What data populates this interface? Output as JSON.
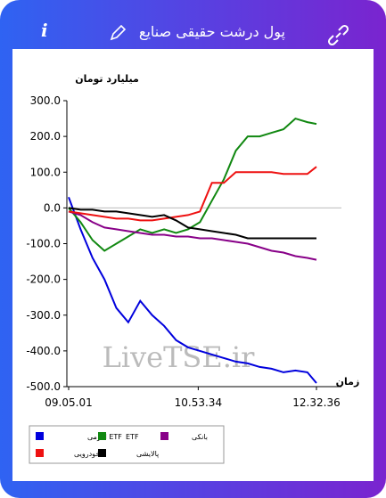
{
  "header": {
    "title": "پول درشت حقیقی صنایع",
    "info": "i"
  },
  "chart_data": {
    "type": "line",
    "y_label": "میلیارد تومان",
    "x_label": "زمان",
    "watermark": "LiveTSE.ir",
    "x": [
      "09.05.01",
      "09.15.00",
      "09.25.00",
      "09.35.00",
      "09.45.00",
      "09.55.00",
      "10.05.00",
      "10.15.00",
      "10.25.00",
      "10.35.00",
      "10.45.00",
      "10.55.00",
      "11.05.00",
      "11.15.00",
      "11.25.00",
      "11.35.00",
      "11.45.00",
      "11.55.00",
      "12.05.00",
      "12.15.00",
      "12.25.00",
      "12.32.36"
    ],
    "xlim": [
      "09.05.01",
      "12.32.36"
    ],
    "xticks": [
      "09.05.01",
      "10.53.34",
      "12.32.36"
    ],
    "ylim": [
      -500,
      300
    ],
    "yticks": [
      {
        "value": -500,
        "label": "-500.0"
      },
      {
        "value": -400,
        "label": "-400.0"
      },
      {
        "value": -300,
        "label": "-300.0"
      },
      {
        "value": -200,
        "label": "-200.0"
      },
      {
        "value": -100,
        "label": "-100.0"
      },
      {
        "value": 0,
        "label": "0.0"
      },
      {
        "value": 100,
        "label": "100.0"
      },
      {
        "value": 200,
        "label": "200.0"
      },
      {
        "value": 300,
        "label": "300.0"
      }
    ],
    "zero_line": true,
    "series": [
      {
        "name": "ETF اهرمی",
        "color": "#0000dd",
        "values": [
          30,
          -60,
          -140,
          -200,
          -280,
          -320,
          -260,
          -300,
          -330,
          -370,
          -390,
          -400,
          -410,
          -420,
          -430,
          -435,
          -445,
          -450,
          -460,
          -455,
          -460,
          -490
        ]
      },
      {
        "name": "ETF",
        "color": "#118811",
        "values": [
          0,
          -40,
          -90,
          -120,
          -100,
          -80,
          -60,
          -70,
          -60,
          -70,
          -60,
          -40,
          20,
          80,
          160,
          200,
          200,
          210,
          220,
          250,
          240,
          235
        ]
      },
      {
        "name": "بانکی",
        "color": "#880088",
        "values": [
          -10,
          -20,
          -40,
          -55,
          -60,
          -65,
          -70,
          -75,
          -75,
          -80,
          -80,
          -85,
          -85,
          -90,
          -95,
          -100,
          -110,
          -120,
          -125,
          -135,
          -140,
          -145
        ]
      },
      {
        "name": "خودرویی",
        "color": "#ee1111",
        "values": [
          -10,
          -15,
          -20,
          -25,
          -30,
          -30,
          -35,
          -35,
          -30,
          -25,
          -20,
          -10,
          70,
          70,
          100,
          100,
          100,
          100,
          95,
          95,
          95,
          115
        ]
      },
      {
        "name": "پالایشی",
        "color": "#000000",
        "values": [
          0,
          -5,
          -5,
          -10,
          -10,
          -15,
          -20,
          -25,
          -20,
          -35,
          -55,
          -60,
          -65,
          -70,
          -75,
          -85,
          -85,
          -85,
          -85,
          -85,
          -85,
          -85
        ]
      }
    ]
  }
}
